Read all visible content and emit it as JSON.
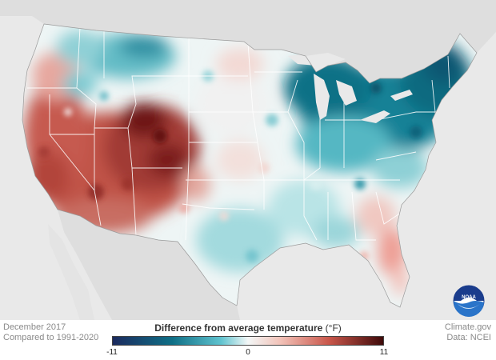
{
  "map": {
    "period": "December 2017",
    "baseline": "Compared to 1991-2020",
    "source_org": "Climate.gov",
    "source_data": "Data: NCEI",
    "logo_text": "NOAA"
  },
  "legend": {
    "title": "Difference from average temperature",
    "unit": "(°F)",
    "min_label": "-11",
    "mid_label": "0",
    "max_label": "11",
    "min": -11,
    "max": 11,
    "colors": [
      "#1b2a5e",
      "#0f6f86",
      "#5fc3cf",
      "#eef6f6",
      "#f6dcd5",
      "#c9564a",
      "#3f0a0a"
    ]
  },
  "colors": {
    "background": "#e9e9e9",
    "land_outside": "#dcdcdc",
    "state_border": "#ffffff",
    "cold": "#0f6f86",
    "neutral": "#f5f5f5",
    "warm": "#b8453c"
  }
}
